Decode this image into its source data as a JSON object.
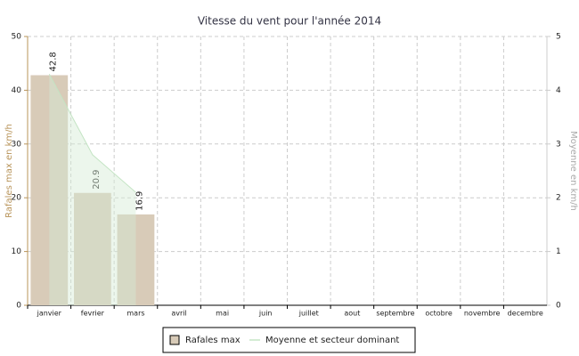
{
  "chart_data": {
    "type": "bar_area",
    "title": "Vitesse du vent pour l'année 2014",
    "y_label": "Rafales max en km/h",
    "y2_label": "Moyenne en km/h",
    "categories": [
      "janvier",
      "fevrier",
      "mars",
      "avril",
      "mai",
      "juin",
      "juillet",
      "aout",
      "septembre",
      "octobre",
      "novembre",
      "decembre"
    ],
    "series": [
      {
        "name": "Rafales max",
        "type": "bar",
        "color": "#d8cbb8",
        "values": [
          42.8,
          20.9,
          16.9,
          null,
          null,
          null,
          null,
          null,
          null,
          null,
          null,
          null
        ]
      },
      {
        "name": "Moyenne et secteur dominant",
        "type": "area",
        "axis": "y2",
        "color": "#d4ecd4",
        "values": [
          4.3,
          2.8,
          2.1,
          null,
          null,
          null,
          null,
          null,
          null,
          null,
          null,
          null
        ]
      }
    ],
    "ylim": [
      0,
      50
    ],
    "yticks": [
      0,
      10,
      20,
      30,
      40,
      50
    ],
    "y2lim": [
      0,
      5
    ],
    "y2ticks": [
      0,
      1,
      2,
      3,
      4,
      5
    ],
    "grid": true
  }
}
